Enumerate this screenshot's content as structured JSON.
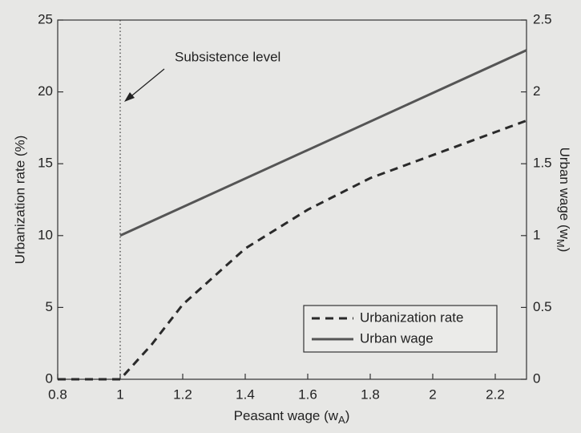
{
  "chart_data": {
    "type": "line",
    "xlabel": {
      "text": "Peasant wage (w",
      "sub": "A",
      "after": ")"
    },
    "ylabel": "Urbanization rate (%)",
    "y2label": {
      "text": "Urban wage (w",
      "sub": "M",
      "after": ")"
    },
    "xlim": [
      0.8,
      2.3
    ],
    "xticks": [
      0.8,
      1,
      1.2,
      1.4,
      1.6,
      1.8,
      2,
      2.2
    ],
    "ylim": [
      0,
      25
    ],
    "yticks": [
      0,
      5,
      10,
      15,
      20,
      25
    ],
    "y2lim": [
      0,
      2.5
    ],
    "y2ticks": [
      0,
      0.5,
      1,
      1.5,
      2,
      2.5
    ],
    "vline_x": 1,
    "annotation": "Subsistence level",
    "legend": "lower right",
    "series": [
      {
        "name": "Urbanization rate",
        "color": "#2a2a2a",
        "dash": true,
        "x": [
          0.8,
          1,
          1.1,
          1.2,
          1.4,
          1.6,
          1.8,
          2,
          2.2,
          2.3
        ],
        "values": [
          0,
          0,
          2.4,
          5.2,
          9.1,
          11.8,
          14.0,
          15.6,
          17.2,
          18.0
        ]
      },
      {
        "name": "Urban wage",
        "color": "#555555",
        "dash": false,
        "axis": "y2",
        "x": [
          1,
          2.3
        ],
        "values": [
          1.0,
          2.29
        ]
      }
    ]
  }
}
